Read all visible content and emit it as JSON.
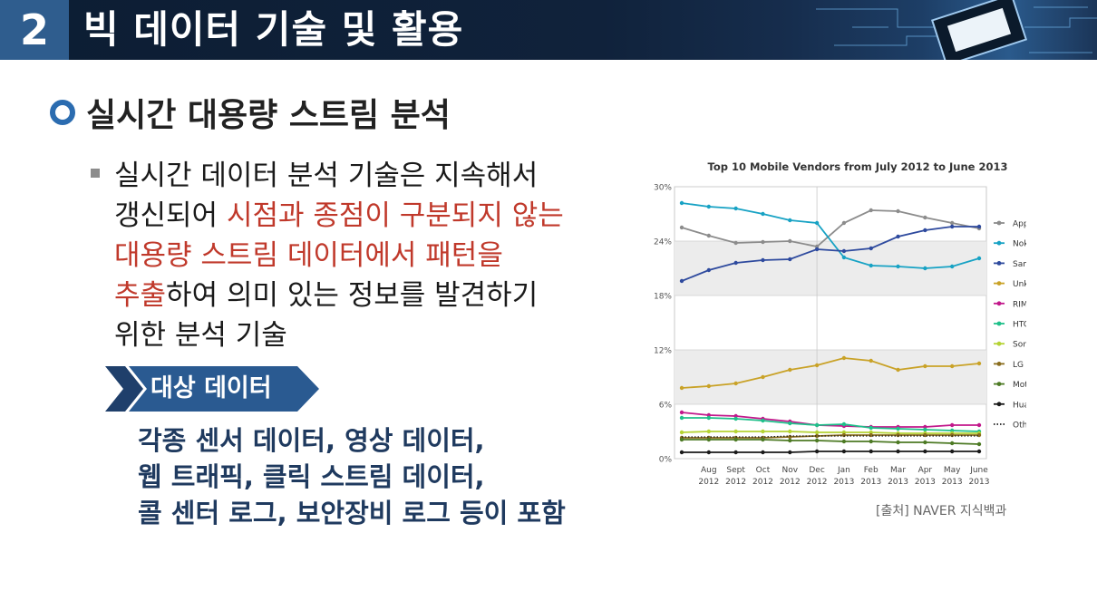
{
  "header": {
    "number": "2",
    "title": "빅 데이터 기술 및 활용"
  },
  "subtitle": "실시간 대용량 스트림 분석",
  "bullet": {
    "lines": [
      [
        {
          "t": "실시간 데이터 분석 기술은 지속해서",
          "red": false
        }
      ],
      [
        {
          "t": "갱신되어 ",
          "red": false
        },
        {
          "t": "시점과 종점이 구분되지 않는",
          "red": true
        }
      ],
      [
        {
          "t": "대용량 스트림 데이터에서 패턴을",
          "red": true
        }
      ],
      [
        {
          "t": "추출",
          "red": true
        },
        {
          "t": "하여 의미 있는 정보를 발견하기",
          "red": false
        }
      ],
      [
        {
          "t": "위한 분석 기술",
          "red": false
        }
      ]
    ]
  },
  "tag_label": "대상 데이터",
  "targets": [
    "각종 센서 데이터, 영상 데이터,",
    "웹 트래픽, 클릭 스트림 데이터,",
    "콜 센터 로그, 보안장비 로그 등이 포함"
  ],
  "source": "[출처] NAVER 지식백과",
  "colors": {
    "header_bg": "#0c1d33",
    "number_box": "#2f5d8e",
    "accent_red": "#c0392b",
    "list_navy": "#1f3a5f"
  },
  "chart_data": {
    "type": "line",
    "title": "Top 10 Mobile Vendors from July 2012 to June 2013",
    "x_ticks": [
      {
        "month": "Aug",
        "year": "2012"
      },
      {
        "month": "Sept",
        "year": "2012"
      },
      {
        "month": "Oct",
        "year": "2012"
      },
      {
        "month": "Nov",
        "year": "2012"
      },
      {
        "month": "Dec",
        "year": "2012"
      },
      {
        "month": "Jan",
        "year": "2013"
      },
      {
        "month": "Feb",
        "year": "2013"
      },
      {
        "month": "Mar",
        "year": "2013"
      },
      {
        "month": "Apr",
        "year": "2013"
      },
      {
        "month": "May",
        "year": "2013"
      },
      {
        "month": "June",
        "year": "2013"
      }
    ],
    "y_ticks": [
      "0%",
      "6%",
      "12%",
      "18%",
      "24%",
      "30%"
    ],
    "ylim": [
      0,
      30
    ],
    "series": [
      {
        "name": "Apple",
        "color": "#8c8c8c",
        "values": [
          25.5,
          24.6,
          23.8,
          23.9,
          24.0,
          23.4,
          26.0,
          27.4,
          27.3,
          26.6,
          26.0,
          25.4
        ]
      },
      {
        "name": "Nokia",
        "color": "#17a2c4",
        "values": [
          28.2,
          27.8,
          27.6,
          27.0,
          26.3,
          26.0,
          22.2,
          21.3,
          21.2,
          21.0,
          21.2,
          22.1
        ]
      },
      {
        "name": "Samsung",
        "color": "#2e4a9e",
        "values": [
          19.6,
          20.8,
          21.6,
          21.9,
          22.0,
          23.1,
          22.9,
          23.2,
          24.5,
          25.2,
          25.6,
          25.6
        ]
      },
      {
        "name": "Unknown",
        "color": "#c9a227",
        "values": [
          7.8,
          8.0,
          8.3,
          9.0,
          9.8,
          10.3,
          11.1,
          10.8,
          9.8,
          10.2,
          10.2,
          10.5
        ]
      },
      {
        "name": "RIM",
        "color": "#c2188b",
        "values": [
          5.1,
          4.8,
          4.7,
          4.4,
          4.1,
          3.7,
          3.6,
          3.5,
          3.5,
          3.5,
          3.7,
          3.7
        ]
      },
      {
        "name": "HTC",
        "color": "#1fc08a",
        "values": [
          4.5,
          4.5,
          4.4,
          4.2,
          3.9,
          3.7,
          3.8,
          3.4,
          3.3,
          3.2,
          3.1,
          3.0
        ]
      },
      {
        "name": "Sony Ericsson",
        "color": "#b5d334",
        "values": [
          2.9,
          3.0,
          3.0,
          3.0,
          3.0,
          2.9,
          2.9,
          2.9,
          2.8,
          2.8,
          2.8,
          2.8
        ]
      },
      {
        "name": "LG",
        "color": "#8a6d1e",
        "values": [
          2.3,
          2.3,
          2.3,
          2.3,
          2.4,
          2.5,
          2.6,
          2.6,
          2.6,
          2.6,
          2.6,
          2.6
        ]
      },
      {
        "name": "Motorola",
        "color": "#4d7a24",
        "values": [
          2.1,
          2.1,
          2.1,
          2.1,
          2.0,
          2.0,
          1.9,
          1.9,
          1.8,
          1.8,
          1.7,
          1.6
        ]
      },
      {
        "name": "Huawei",
        "color": "#1a1a1a",
        "values": [
          0.7,
          0.7,
          0.7,
          0.7,
          0.7,
          0.8,
          0.8,
          0.8,
          0.8,
          0.8,
          0.8,
          0.8
        ]
      },
      {
        "name": "Other (dotted)",
        "color": "#1a1a1a",
        "dotted": true,
        "values": [
          2.4,
          2.4,
          2.4,
          2.4,
          2.5,
          2.5,
          2.5,
          2.5,
          2.5,
          2.5,
          2.5,
          2.5
        ]
      }
    ],
    "grid": true,
    "legend": "right"
  }
}
